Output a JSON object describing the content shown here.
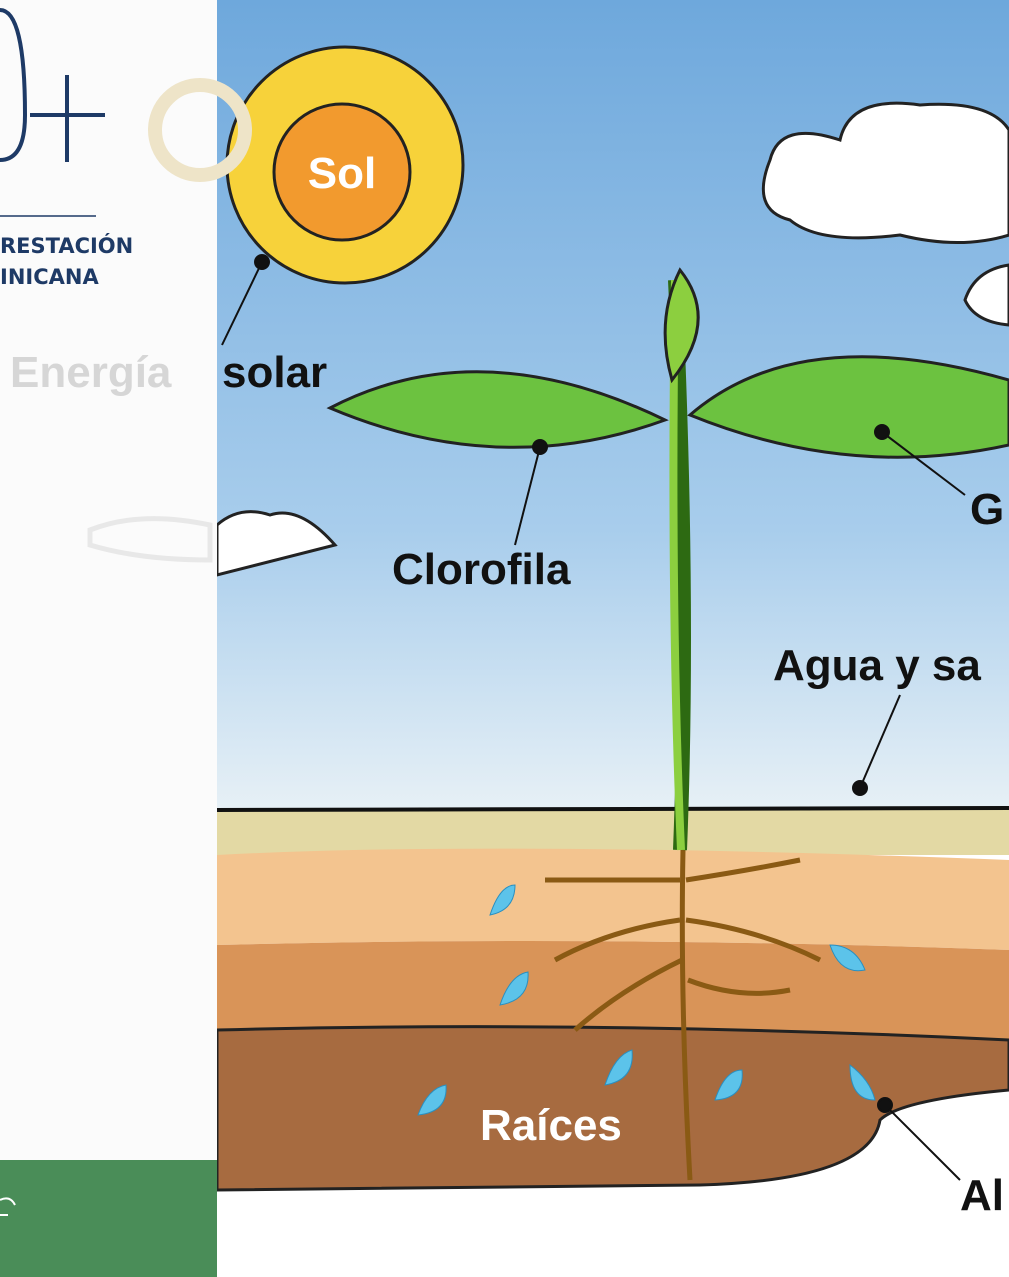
{
  "sidebar": {
    "logo_lines": [
      "RESTACIÓN",
      "INICANA"
    ]
  },
  "illustration": {
    "labels": {
      "sun": "Sol",
      "energy": "Energía",
      "solar": "solar",
      "chlorophyll": "Clorofila",
      "gas": "G",
      "water": "Agua y sa",
      "roots": "Raíces",
      "air": "Al"
    }
  }
}
